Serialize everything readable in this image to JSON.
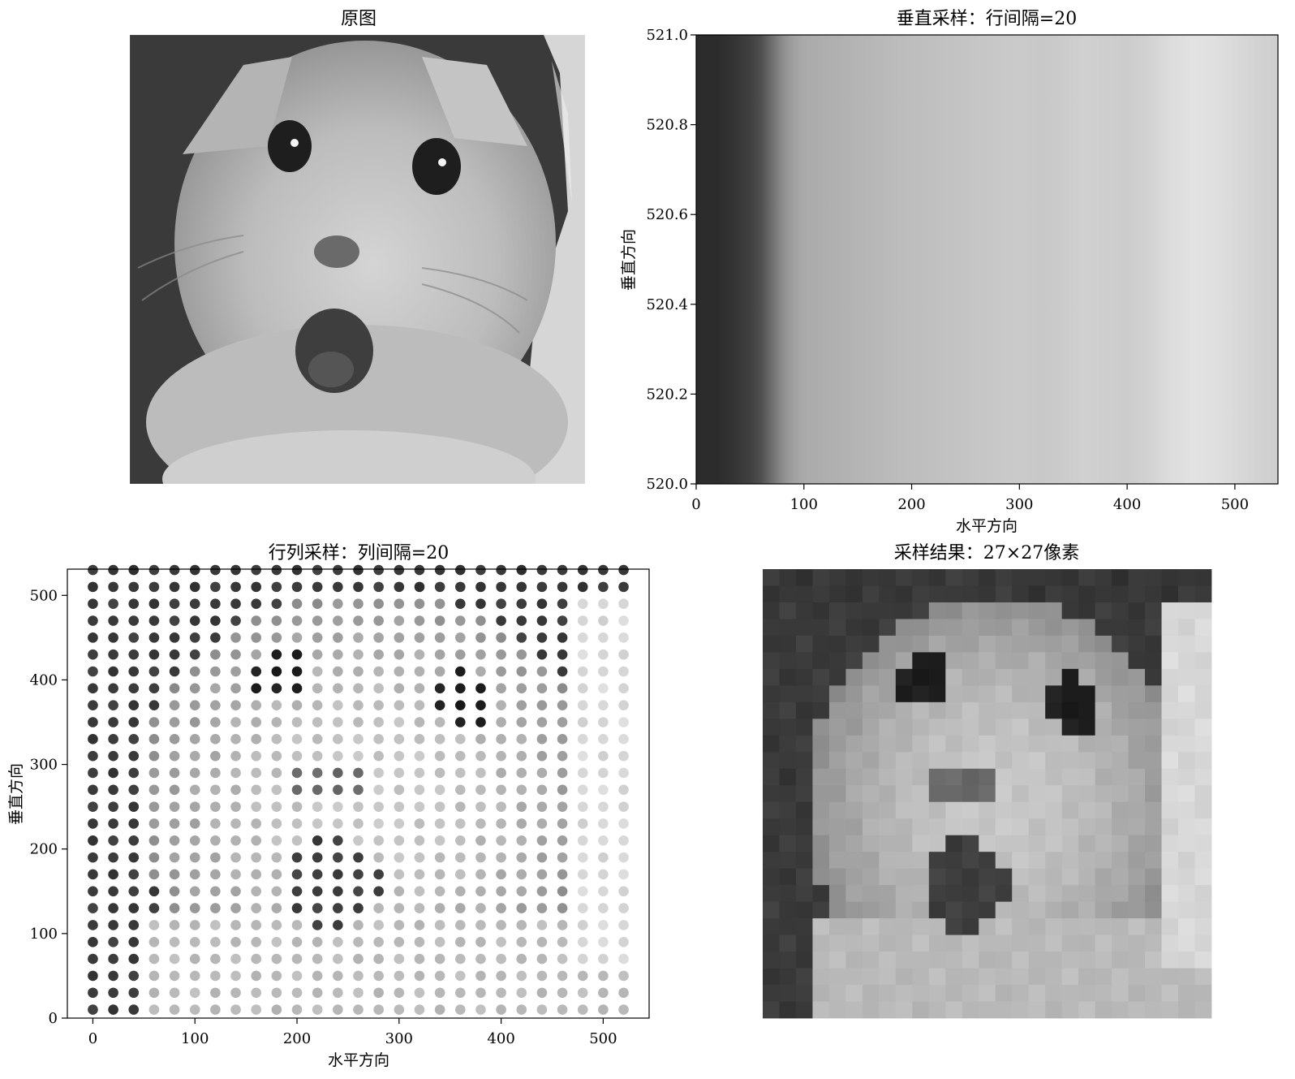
{
  "chart_data": [
    {
      "type": "image",
      "title": "原图",
      "content": "grayscale photo of a surprised cat face",
      "axes": "off"
    },
    {
      "type": "heatmap",
      "title": "垂直采样：行间隔=20",
      "xlabel": "水平方向",
      "ylabel": "垂直方向",
      "xlim": [
        0,
        540
      ],
      "ylim": [
        520.0,
        521.0
      ],
      "xticks": [
        0,
        100,
        200,
        300,
        400,
        500
      ],
      "yticks": [
        "520.0",
        "520.2",
        "520.4",
        "520.6",
        "520.8",
        "521.0"
      ],
      "colormap": "gray",
      "column_gray_profile": [
        [
          0,
          44
        ],
        [
          20,
          44
        ],
        [
          35,
          52
        ],
        [
          50,
          64
        ],
        [
          60,
          78
        ],
        [
          70,
          110
        ],
        [
          80,
          140
        ],
        [
          90,
          160
        ],
        [
          100,
          170
        ],
        [
          130,
          176
        ],
        [
          160,
          182
        ],
        [
          190,
          188
        ],
        [
          220,
          192
        ],
        [
          250,
          196
        ],
        [
          280,
          200
        ],
        [
          300,
          202
        ],
        [
          320,
          200
        ],
        [
          340,
          203
        ],
        [
          360,
          208
        ],
        [
          380,
          206
        ],
        [
          400,
          204
        ],
        [
          420,
          210
        ],
        [
          440,
          220
        ],
        [
          460,
          226
        ],
        [
          480,
          224
        ],
        [
          500,
          218
        ],
        [
          520,
          210
        ],
        [
          540,
          206
        ]
      ]
    },
    {
      "type": "scatter",
      "title": "行列采样：列间隔=20",
      "xlabel": "水平方向",
      "ylabel": "垂直方向",
      "xlim": [
        -25,
        545
      ],
      "ylim": [
        0,
        531
      ],
      "xticks": [
        0,
        100,
        200,
        300,
        400,
        500
      ],
      "yticks": [
        0,
        100,
        200,
        300,
        400,
        500
      ],
      "x_values": [
        0,
        20,
        40,
        60,
        80,
        100,
        120,
        140,
        160,
        180,
        200,
        220,
        240,
        260,
        280,
        300,
        320,
        340,
        360,
        380,
        400,
        420,
        440,
        460,
        480,
        500,
        520
      ],
      "y_values": [
        10,
        30,
        50,
        70,
        90,
        110,
        130,
        150,
        170,
        190,
        210,
        230,
        250,
        270,
        290,
        310,
        330,
        350,
        370,
        390,
        410,
        430,
        450,
        470,
        490,
        510,
        530
      ],
      "marker_color": "grayscale intensity of the sampled pixel",
      "colormap": "gray"
    },
    {
      "type": "heatmap",
      "title": "采样结果：27×27像素",
      "rows": 27,
      "cols": 27,
      "axes": "off",
      "colormap": "gray"
    }
  ]
}
